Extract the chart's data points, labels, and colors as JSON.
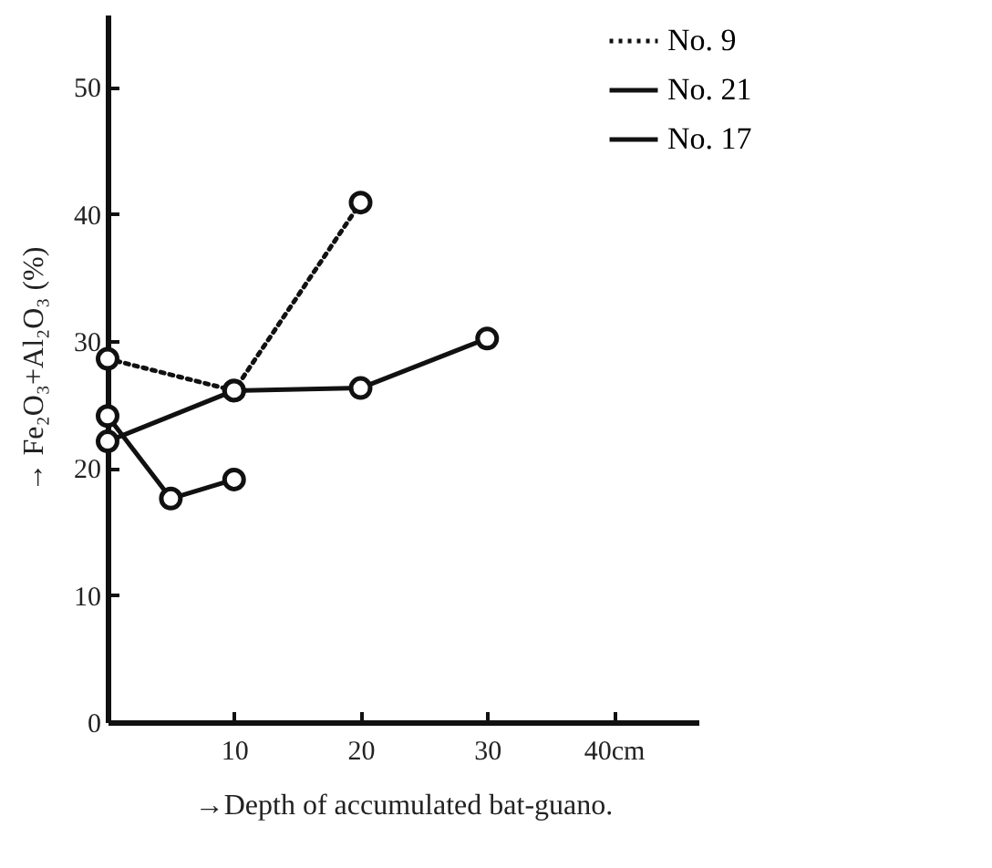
{
  "chart_data": {
    "type": "line",
    "xlabel": "→Depth of accumulated bat-guano.",
    "ylabel": "→ Fe₂O₃+Al₂O₃ (%)",
    "xlim": [
      0,
      46.7
    ],
    "xticks": [
      10,
      20,
      30,
      {
        "value": 40,
        "label": "40cm"
      }
    ],
    "ylim": [
      0,
      55.7
    ],
    "yticks": [
      0,
      10,
      20,
      30,
      40,
      50
    ],
    "grid": false,
    "legend": "top right",
    "marker": "circle",
    "series": [
      {
        "name": "No. 9",
        "color": "#111111",
        "line_style": "dotted",
        "x": [
          0,
          10,
          20
        ],
        "values": [
          28.6,
          26.1,
          40.9
        ]
      },
      {
        "name": "No. 21",
        "color": "#111111",
        "line_style": "solid",
        "x": [
          0,
          5,
          10
        ],
        "values": [
          24.1,
          17.6,
          19.1
        ]
      },
      {
        "name": "No. 17",
        "color": "#111111",
        "line_style": "solid",
        "x": [
          0,
          10,
          20,
          30
        ],
        "values": [
          22.1,
          26.1,
          26.3,
          30.2
        ]
      }
    ]
  }
}
